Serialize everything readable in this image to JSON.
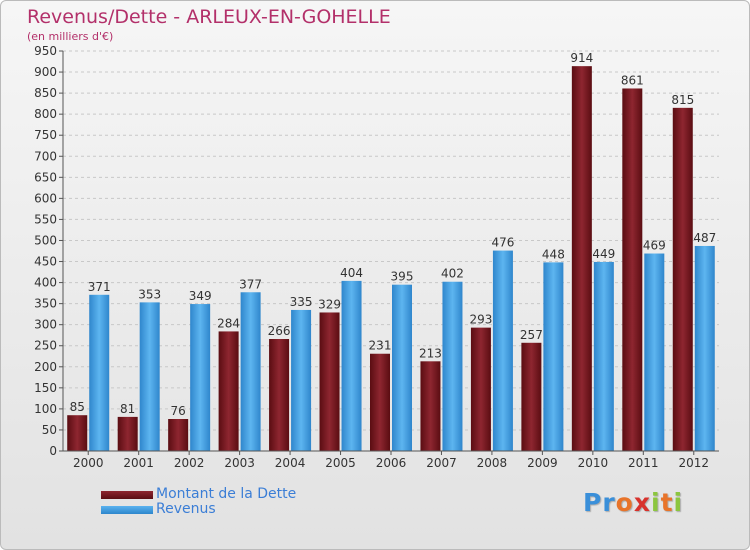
{
  "colors": {
    "debt": "#6e1a22",
    "revenue": "#43a0e6",
    "title": "#b3306a",
    "legend": "#3b7ed6"
  },
  "chart_data": {
    "type": "bar",
    "title": "Revenus/Dette - ARLEUX-EN-GOHELLE",
    "subtitle": "(en milliers d'€)",
    "categories": [
      "2000",
      "2001",
      "2002",
      "2003",
      "2004",
      "2005",
      "2006",
      "2007",
      "2008",
      "2009",
      "2010",
      "2011",
      "2012"
    ],
    "series": [
      {
        "name": "Montant de la Dette",
        "values": [
          85,
          81,
          76,
          284,
          266,
          329,
          231,
          213,
          293,
          257,
          914,
          861,
          815
        ]
      },
      {
        "name": "Revenus",
        "values": [
          371,
          353,
          349,
          377,
          335,
          404,
          395,
          402,
          476,
          448,
          449,
          469,
          487
        ]
      }
    ],
    "yticks": [
      0,
      50,
      100,
      150,
      200,
      250,
      300,
      350,
      400,
      450,
      500,
      550,
      600,
      650,
      700,
      750,
      800,
      850,
      900,
      950
    ],
    "ylim": [
      0,
      950
    ],
    "grid": true,
    "legend": "bottom-left"
  },
  "brand": {
    "letters": [
      "P",
      "r",
      "o",
      "x",
      "i",
      "t",
      "i"
    ],
    "letter_colors": [
      "#3a8fd9",
      "#3a8fd9",
      "#e8742a",
      "#d8322c",
      "#8cc63f",
      "#e8742a",
      "#8cc63f"
    ]
  }
}
